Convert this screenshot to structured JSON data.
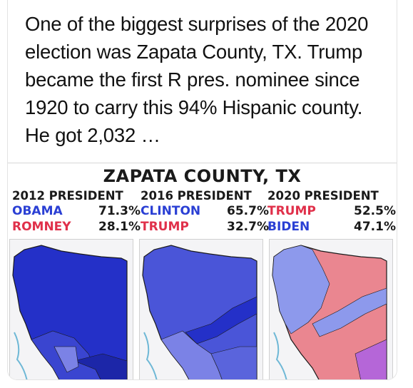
{
  "tweet": {
    "text": "One of the biggest surprises of the 2020 election was Zapata County, TX. Trump became the first R pres. nominee since 1920 to carry this 94% Hispanic county. He got 2,032 …"
  },
  "graphic": {
    "title": "ZAPATA COUNTY, TX",
    "columns": [
      {
        "header": "2012 PRESIDENT",
        "rows": [
          {
            "candidate": "OBAMA",
            "pct": "71.3%",
            "color": "#2a3fd4"
          },
          {
            "candidate": "ROMNEY",
            "pct": "28.1%",
            "color": "#e0304a"
          }
        ]
      },
      {
        "header": "2016 PRESIDENT",
        "rows": [
          {
            "candidate": "CLINTON",
            "pct": "65.7%",
            "color": "#2a3fd4"
          },
          {
            "candidate": "TRUMP",
            "pct": "32.7%",
            "color": "#e0304a"
          }
        ]
      },
      {
        "header": "2020 PRESIDENT",
        "rows": [
          {
            "candidate": "TRUMP",
            "pct": "52.5%",
            "color": "#e0304a"
          },
          {
            "candidate": "BIDEN",
            "pct": "47.1%",
            "color": "#2a3fd4"
          }
        ]
      }
    ],
    "map_colors": {
      "dark_blue": "#2430c8",
      "mid_blue": "#4a55d8",
      "light_blue": "#7b82e6",
      "pale_blue": "#8d99ec",
      "red": "#ea8690",
      "purple": "#b566d8"
    }
  }
}
